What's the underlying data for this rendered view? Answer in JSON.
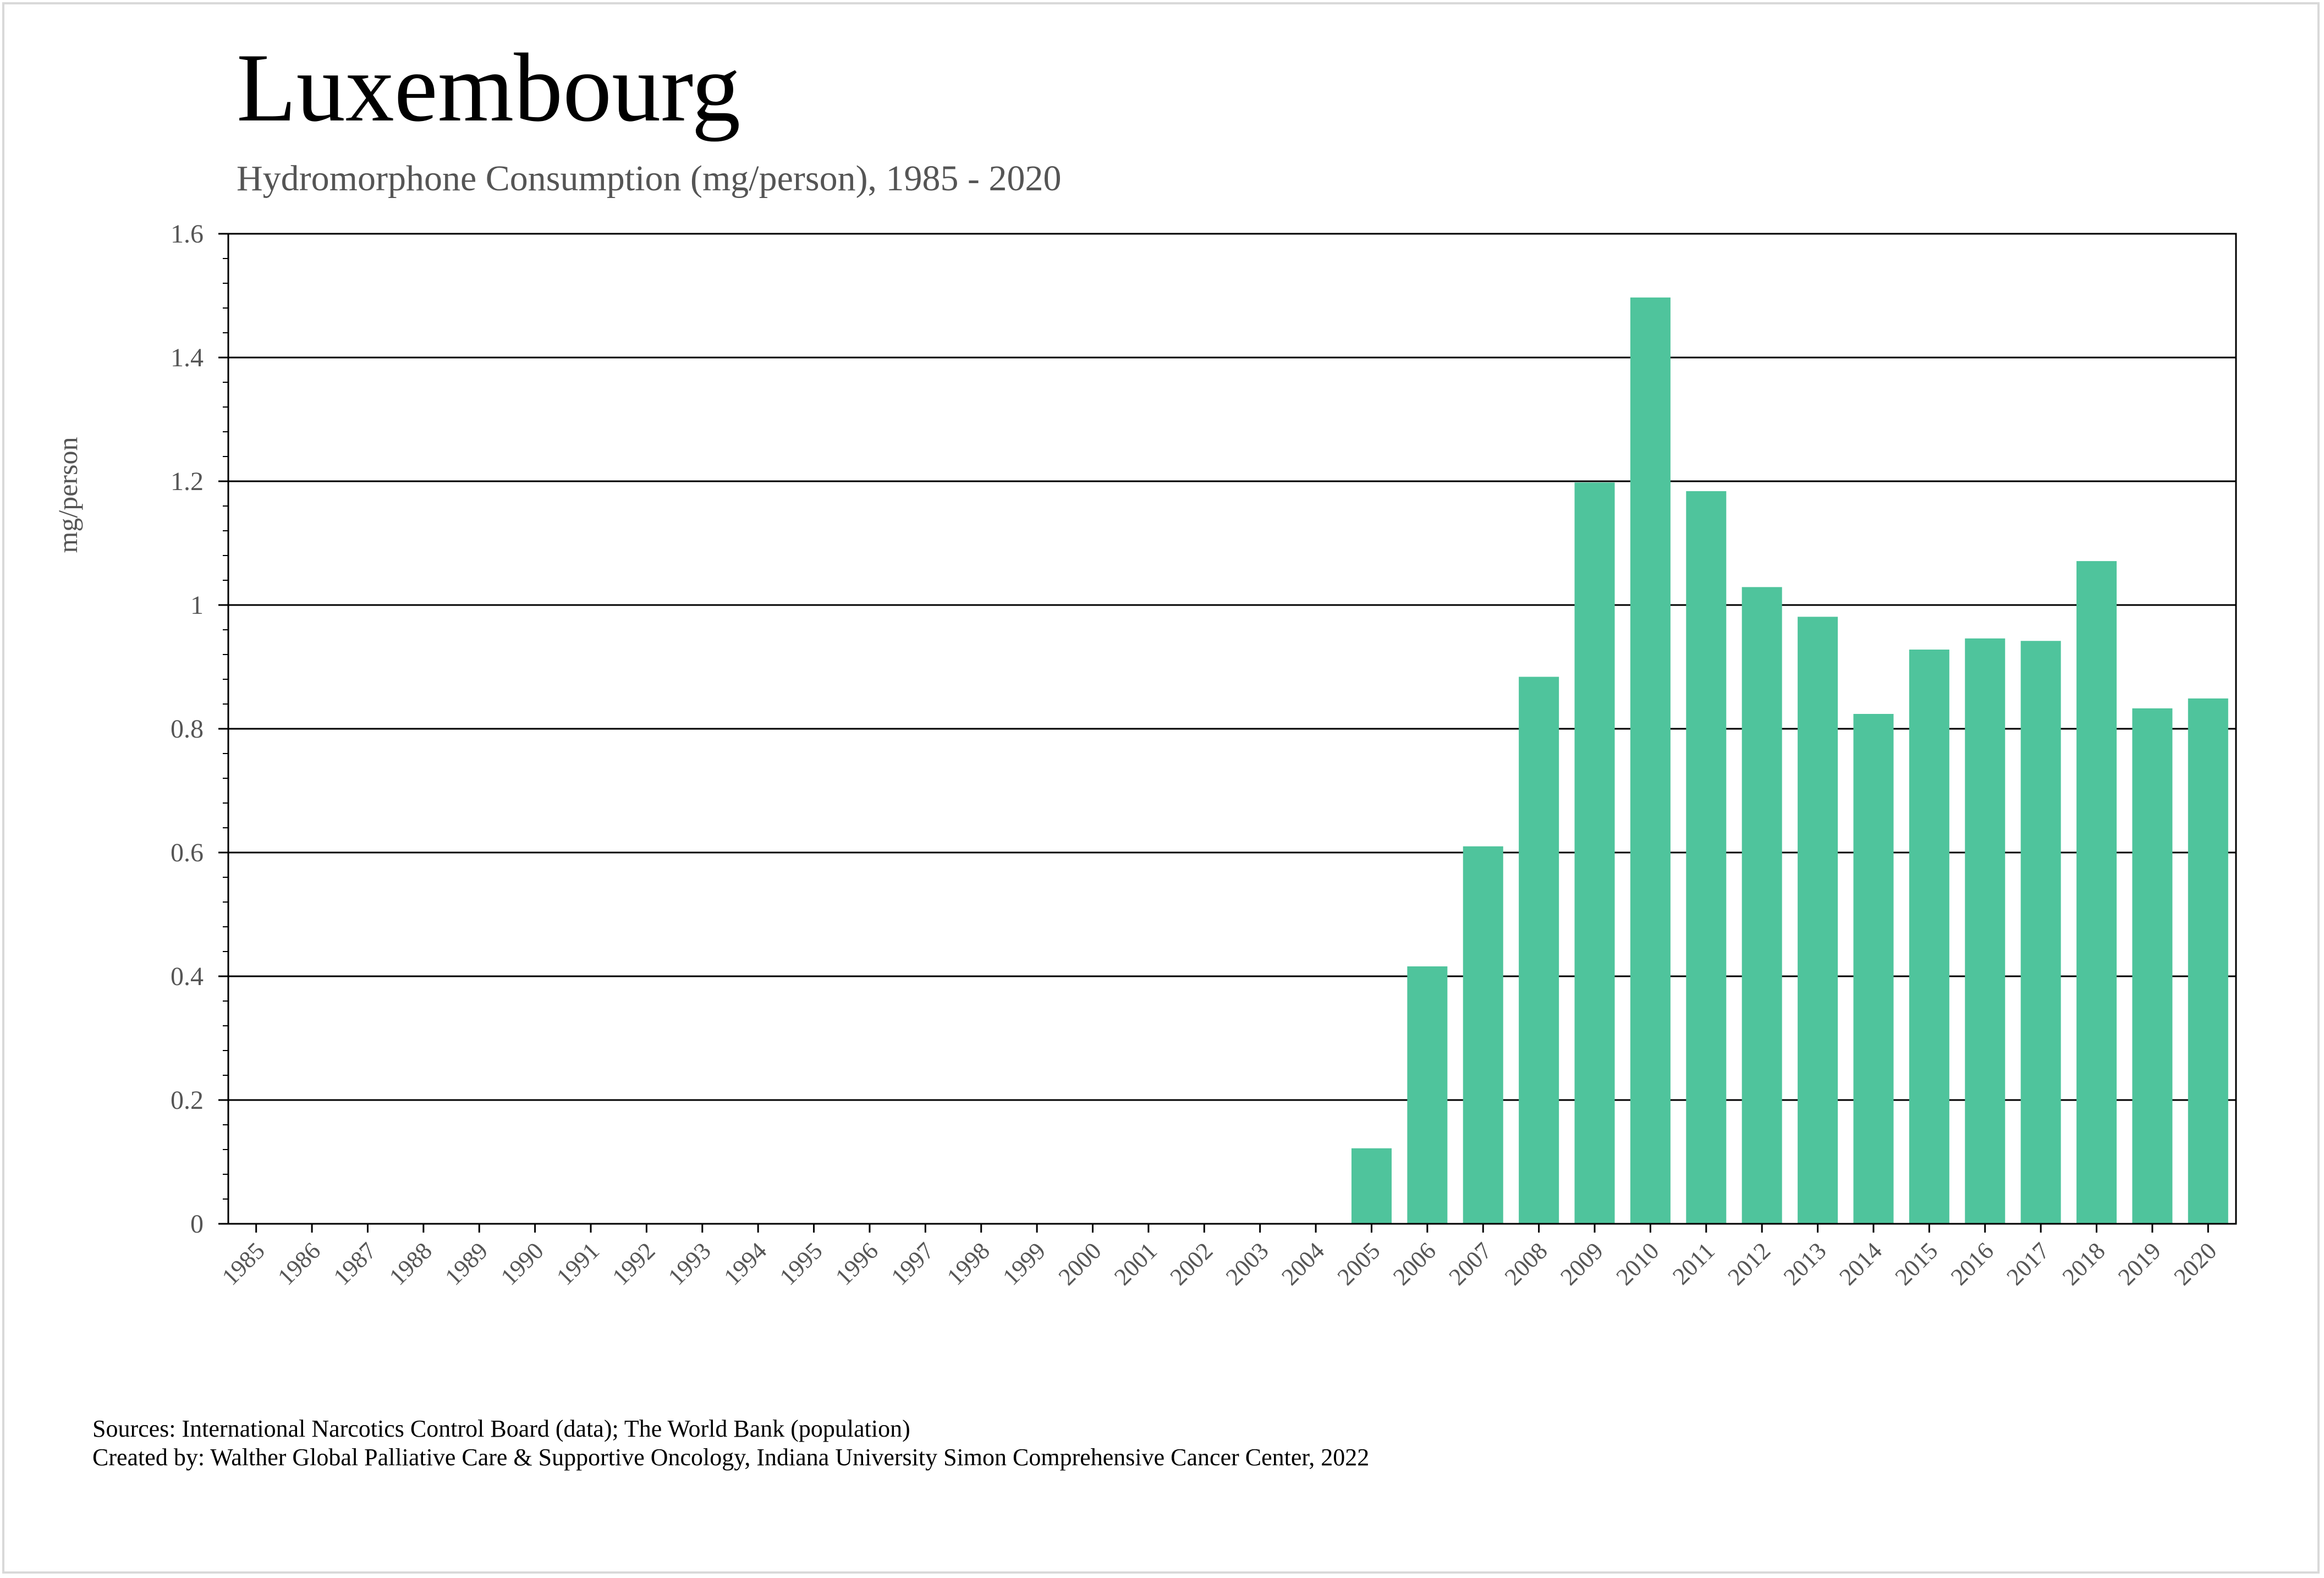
{
  "title": "Luxembourg",
  "subtitle": "Hydromorphone Consumption (mg/person), 1985 - 2020",
  "sources_line1": "Sources: International Narcotics Control Board (data); The World Bank (population)",
  "sources_line2": "Created by: Walther Global Palliative Care & Supportive Oncology, Indiana University Simon Comprehensive Cancer Center, 2022",
  "colors": {
    "bar": "#4fc49c",
    "grid": "#000000",
    "axis_text": "#555555"
  },
  "chart_data": {
    "type": "bar",
    "title": "Luxembourg",
    "subtitle": "Hydromorphone Consumption (mg/person), 1985 - 2020",
    "xlabel": "",
    "ylabel": "mg/person",
    "ylim": [
      0,
      1.6
    ],
    "yticks": [
      "0",
      "0.2",
      "0.4",
      "0.6",
      "0.8",
      "1",
      "1.2",
      "1.4",
      "1.6"
    ],
    "grid": true,
    "categories": [
      "1985",
      "1986",
      "1987",
      "1988",
      "1989",
      "1990",
      "1991",
      "1992",
      "1993",
      "1994",
      "1995",
      "1996",
      "1997",
      "1998",
      "1999",
      "2000",
      "2001",
      "2002",
      "2003",
      "2004",
      "2005",
      "2006",
      "2007",
      "2008",
      "2009",
      "2010",
      "2011",
      "2012",
      "2013",
      "2014",
      "2015",
      "2016",
      "2017",
      "2018",
      "2019",
      "2020"
    ],
    "values": [
      0,
      0,
      0,
      0,
      0,
      0,
      0,
      0,
      0,
      0,
      0,
      0,
      0,
      0,
      0,
      0,
      0,
      0,
      0,
      0,
      0.122,
      0.416,
      0.61,
      0.884,
      1.198,
      1.497,
      1.184,
      1.029,
      0.981,
      0.824,
      0.928,
      0.946,
      0.942,
      1.071,
      0.833,
      0.849
    ]
  }
}
